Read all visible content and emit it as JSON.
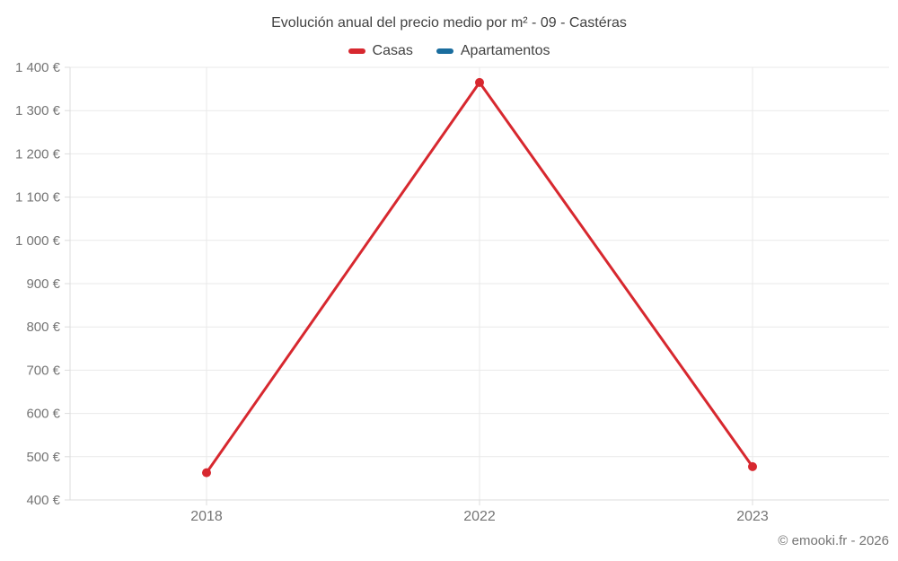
{
  "header": {
    "title": "Evolución anual del precio medio por m² - 09 - Castéras"
  },
  "legend": {
    "items": [
      {
        "label": "Casas",
        "color": "#d7282f"
      },
      {
        "label": "Apartamentos",
        "color": "#1a6d9e"
      }
    ]
  },
  "footer": {
    "credit": "© emooki.fr - 2026"
  },
  "chart_data": {
    "type": "line",
    "title": "Evolución anual del precio medio por m² - 09 - Castéras",
    "categories": [
      "2018",
      "2022",
      "2023"
    ],
    "series": [
      {
        "name": "Casas",
        "color": "#d7282f",
        "values": [
          463,
          1365,
          477
        ]
      },
      {
        "name": "Apartamentos",
        "color": "#1a6d9e",
        "values": [
          null,
          null,
          null
        ]
      }
    ],
    "ylim": [
      400,
      1400
    ],
    "ytick_step": 100,
    "ytick_suffix": " €",
    "grid": true,
    "legend_position": "top",
    "colors": {
      "axis_text": "#757575",
      "title_text": "#424242",
      "gridline": "#e9e9e9",
      "axis_line": "#dcdcdc"
    }
  }
}
